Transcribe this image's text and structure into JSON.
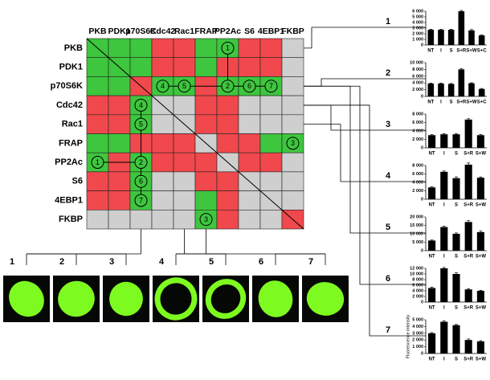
{
  "matrix": {
    "columns": [
      "PKB",
      "PDK1",
      "p70S6K",
      "Cdc42",
      "Rac1",
      "FRAP",
      "PP2Ac",
      "S6",
      "4EBP1",
      "FKBP"
    ],
    "rows": [
      "PKB",
      "PDK1",
      "p70S6K",
      "Cdc42",
      "Rac1",
      "FRAP",
      "PP2Ac",
      "S6",
      "4EBP1",
      "FKBP"
    ],
    "colors": [
      [
        "#3ec63e",
        "#3ec63e",
        "#3ec63e",
        "#f0484c",
        "#f0484c",
        "#3ec63e",
        "#3ec63e",
        "#f0484c",
        "#f0484c",
        "#cfcfcf"
      ],
      [
        "#3ec63e",
        "#3ec63e",
        "#3ec63e",
        "#f0484c",
        "#f0484c",
        "#3ec63e",
        "#f0484c",
        "#f0484c",
        "#f0484c",
        "#cfcfcf"
      ],
      [
        "#3ec63e",
        "#3ec63e",
        "#f0484c",
        "#3ec63e",
        "#3ec63e",
        "#f0484c",
        "#3ec63e",
        "#3ec63e",
        "#3ec63e",
        "#cfcfcf"
      ],
      [
        "#f0484c",
        "#f0484c",
        "#3ec63e",
        "#cfcfcf",
        "#cfcfcf",
        "#f0484c",
        "#f0484c",
        "#cfcfcf",
        "#cfcfcf",
        "#cfcfcf"
      ],
      [
        "#f0484c",
        "#f0484c",
        "#3ec63e",
        "#cfcfcf",
        "#cfcfcf",
        "#f0484c",
        "#f0484c",
        "#cfcfcf",
        "#cfcfcf",
        "#cfcfcf"
      ],
      [
        "#3ec63e",
        "#3ec63e",
        "#f0484c",
        "#f0484c",
        "#f0484c",
        "#cfcfcf",
        "#f0484c",
        "#f0484c",
        "#3ec63e",
        "#3ec63e"
      ],
      [
        "#3ec63e",
        "#f0484c",
        "#3ec63e",
        "#f0484c",
        "#f0484c",
        "#f0484c",
        "#cfcfcf",
        "#f0484c",
        "#f0484c",
        "#cfcfcf"
      ],
      [
        "#f0484c",
        "#f0484c",
        "#3ec63e",
        "#cfcfcf",
        "#cfcfcf",
        "#f0484c",
        "#f0484c",
        "#cfcfcf",
        "#cfcfcf",
        "#cfcfcf"
      ],
      [
        "#f0484c",
        "#f0484c",
        "#3ec63e",
        "#cfcfcf",
        "#cfcfcf",
        "#3ec63e",
        "#f0484c",
        "#cfcfcf",
        "#cfcfcf",
        "#cfcfcf"
      ],
      [
        "#cfcfcf",
        "#cfcfcf",
        "#cfcfcf",
        "#cfcfcf",
        "#cfcfcf",
        "#3ec63e",
        "#f0484c",
        "#cfcfcf",
        "#cfcfcf",
        "#f0484c"
      ]
    ],
    "markers": [
      [
        null,
        null,
        null,
        null,
        null,
        null,
        "1",
        null,
        null,
        null
      ],
      [
        null,
        null,
        null,
        null,
        null,
        null,
        null,
        null,
        null,
        null
      ],
      [
        null,
        null,
        null,
        "4",
        "5",
        null,
        "2",
        "6",
        "7",
        null
      ],
      [
        null,
        null,
        "4",
        null,
        null,
        null,
        null,
        null,
        null,
        null
      ],
      [
        null,
        null,
        "5",
        null,
        null,
        null,
        null,
        null,
        null,
        null
      ],
      [
        null,
        null,
        null,
        null,
        null,
        null,
        null,
        null,
        null,
        "3"
      ],
      [
        "1",
        null,
        "2",
        null,
        null,
        null,
        null,
        null,
        null,
        null
      ],
      [
        null,
        null,
        "6",
        null,
        null,
        null,
        null,
        null,
        null,
        null
      ],
      [
        null,
        null,
        "7",
        null,
        null,
        null,
        null,
        null,
        null,
        null
      ],
      [
        null,
        null,
        null,
        null,
        null,
        "3",
        null,
        null,
        null,
        null
      ]
    ]
  },
  "images": [
    "1",
    "2",
    "3",
    "4",
    "5",
    "6",
    "7"
  ],
  "chart_data": [
    {
      "type": "bar",
      "label": "1",
      "categories": [
        "NT",
        "I",
        "S",
        "S+R",
        "S+W",
        "S+C"
      ],
      "values": [
        2700,
        2700,
        2700,
        6000,
        2600,
        1700
      ],
      "errors": [
        100,
        100,
        100,
        150,
        150,
        100
      ],
      "color": "#000000",
      "ylim": [
        0,
        6000
      ],
      "yticks": [
        0,
        {
          "value": 1000,
          "label": "1 000"
        },
        {
          "value": 2000,
          "label": "2 000"
        },
        {
          "value": 3000,
          "label": "3 000"
        },
        {
          "value": 4000,
          "label": "4 000"
        },
        {
          "value": 5000,
          "label": "5 000"
        },
        {
          "value": 6000,
          "label": "6 000"
        }
      ]
    },
    {
      "type": "bar",
      "label": "2",
      "categories": [
        "NT",
        "I",
        "S",
        "S+R",
        "S+W",
        "S+C"
      ],
      "values": [
        3800,
        3800,
        3700,
        8000,
        3900,
        2200
      ],
      "errors": [
        150,
        150,
        150,
        200,
        150,
        150
      ],
      "color": "#000000",
      "ylim": [
        0,
        10000
      ],
      "yticks": [
        0,
        {
          "value": 2000,
          "label": "2 000"
        },
        {
          "value": 4000,
          "label": "4 000"
        },
        {
          "value": 6000,
          "label": "6 000"
        },
        {
          "value": 8000,
          "label": "8 000"
        },
        {
          "value": 10000,
          "label": "10 000"
        }
      ]
    },
    {
      "type": "bar",
      "label": "3",
      "categories": [
        "NT",
        "I",
        "S",
        "S+R",
        "S+W"
      ],
      "values": [
        3000,
        3200,
        3200,
        6700,
        3000
      ],
      "errors": [
        150,
        150,
        150,
        200,
        150
      ],
      "color": "#000000",
      "ylim": [
        0,
        8000
      ],
      "yticks": [
        0,
        {
          "value": 2000,
          "label": "2 000"
        },
        {
          "value": 4000,
          "label": "4 000"
        },
        {
          "value": 6000,
          "label": "6 000"
        },
        {
          "value": 8000,
          "label": "8 000"
        }
      ]
    },
    {
      "type": "bar",
      "label": "4",
      "categories": [
        "NT",
        "I",
        "S",
        "S+R",
        "S+W"
      ],
      "values": [
        2800,
        6500,
        5000,
        8200,
        5100
      ],
      "errors": [
        150,
        200,
        300,
        400,
        200
      ],
      "color": "#000000",
      "ylim": [
        0,
        8000
      ],
      "yticks": [
        0,
        {
          "value": 2000,
          "label": "2 000"
        },
        {
          "value": 4000,
          "label": "4 000"
        },
        {
          "value": 6000,
          "label": "6 000"
        },
        {
          "value": 8000,
          "label": "8 000"
        }
      ]
    },
    {
      "type": "bar",
      "label": "5",
      "categories": [
        "NT",
        "I",
        "S",
        "S+R",
        "S+W"
      ],
      "values": [
        6000,
        14000,
        10000,
        17000,
        11000
      ],
      "errors": [
        300,
        500,
        500,
        800,
        600
      ],
      "color": "#000000",
      "ylim": [
        0,
        20000
      ],
      "yticks": [
        0,
        {
          "value": 5000,
          "label": "5 000"
        },
        {
          "value": 10000,
          "label": "10 000"
        },
        {
          "value": 15000,
          "label": "15 000"
        },
        {
          "value": 20000,
          "label": "20 000"
        }
      ]
    },
    {
      "type": "bar",
      "label": "6",
      "categories": [
        "NT",
        "I",
        "S",
        "S+R",
        "S+W"
      ],
      "values": [
        5000,
        12000,
        10000,
        4500,
        4000
      ],
      "errors": [
        300,
        300,
        400,
        300,
        200
      ],
      "color": "#000000",
      "ylim": [
        0,
        12000
      ],
      "yticks": [
        0,
        {
          "value": 2000,
          "label": "2 000"
        },
        {
          "value": 4000,
          "label": "4 000"
        },
        {
          "value": 6000,
          "label": "6 000"
        },
        {
          "value": 8000,
          "label": "8 000"
        },
        {
          "value": 10000,
          "label": "10 000"
        },
        {
          "value": 12000,
          "label": "12 000"
        }
      ]
    },
    {
      "type": "bar",
      "label": "7",
      "ylabel": "Fluorescence intensity",
      "categories": [
        "NT",
        "I",
        "S",
        "S+R",
        "S+W"
      ],
      "values": [
        3000,
        4700,
        4200,
        2000,
        1800
      ],
      "errors": [
        100,
        150,
        100,
        150,
        100
      ],
      "color": "#000000",
      "ylim": [
        0,
        5000
      ],
      "yticks": [
        0,
        {
          "value": 1000,
          "label": "1 000"
        },
        {
          "value": 2000,
          "label": "2 000"
        },
        {
          "value": 3000,
          "label": "3 000"
        },
        {
          "value": 4000,
          "label": "4 000"
        },
        {
          "value": 5000,
          "label": "5 000"
        }
      ]
    }
  ]
}
